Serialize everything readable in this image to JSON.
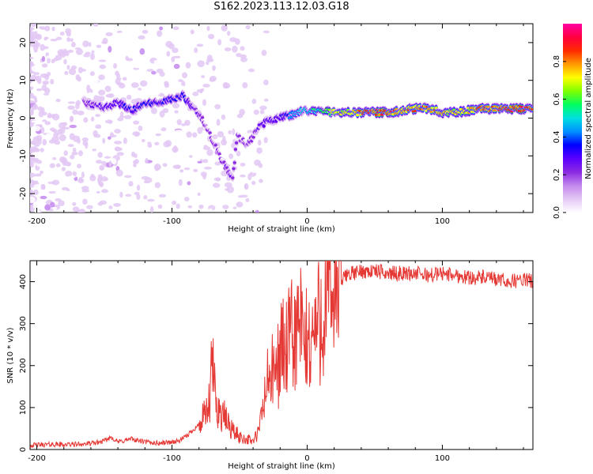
{
  "title": "S162.2023.113.12.03.G18",
  "chart_data": [
    {
      "type": "heatmap",
      "xlabel": "Height of straight line (km)",
      "ylabel": "Frequency (Hz)",
      "xlim": [
        -205,
        167
      ],
      "ylim": [
        -25,
        25
      ],
      "x_ticks": [
        -200,
        -100,
        0,
        100
      ],
      "y_ticks": [
        -20,
        -10,
        0,
        10,
        20
      ],
      "colorbar": {
        "label": "Normalized spectral amplitude",
        "range": [
          0,
          1
        ],
        "ticks": [
          "0.0",
          "0.2",
          "0.4",
          "0.6",
          "0.8"
        ],
        "colors": [
          "#ffffff",
          "#e3c8f5",
          "#c488ee",
          "#8a2be2",
          "#5a00ff",
          "#0000ff",
          "#0090ff",
          "#00e0e0",
          "#00ff60",
          "#80ff00",
          "#ffff00",
          "#ff9900",
          "#ff2a00",
          "#ff0040",
          "#ff00a0"
        ]
      },
      "ridge": {
        "x": [
          -165,
          -150,
          -140,
          -130,
          -120,
          -110,
          -100,
          -92,
          -85,
          -80,
          -75,
          -70,
          -65,
          -60,
          -55,
          -52,
          -48,
          -44,
          -40,
          -35,
          -30,
          -20,
          -10,
          -5,
          0,
          10,
          20,
          30,
          40,
          50,
          60,
          70,
          80,
          90,
          95,
          100,
          110,
          120,
          130,
          140,
          150,
          160,
          167
        ],
        "y": [
          4,
          3,
          4,
          2,
          4,
          4,
          5,
          6,
          3,
          1,
          -2,
          -6,
          -10,
          -13,
          -16,
          -5,
          -6,
          -7,
          -5,
          -2,
          -1,
          0,
          1,
          2,
          2,
          2,
          1.5,
          1.5,
          1.5,
          1.5,
          1.5,
          2,
          2.5,
          2.5,
          2,
          1.5,
          1.5,
          2,
          2.5,
          2.5,
          2.5,
          2.5,
          3
        ],
        "amplitude": [
          0.25,
          0.3,
          0.3,
          0.35,
          0.35,
          0.35,
          0.35,
          0.35,
          0.3,
          0.25,
          0.2,
          0.2,
          0.2,
          0.25,
          0.25,
          0.2,
          0.2,
          0.2,
          0.2,
          0.3,
          0.3,
          0.3,
          0.45,
          0.5,
          0.5,
          0.55,
          0.7,
          0.75,
          0.85,
          0.9,
          0.9,
          0.8,
          0.8,
          0.85,
          0.8,
          0.75,
          0.75,
          0.75,
          0.85,
          0.85,
          0.9,
          0.9,
          0.85
        ]
      }
    },
    {
      "type": "line",
      "xlabel": "Height of straight line (km)",
      "ylabel": "SNR (10 * v/v)",
      "xlim": [
        -205,
        167
      ],
      "ylim": [
        0,
        450
      ],
      "x_ticks": [
        -200,
        -100,
        0,
        100
      ],
      "y_ticks": [
        0,
        100,
        200,
        300,
        400
      ],
      "color": "#e53935",
      "series": [
        {
          "x": [
            -205,
            -190,
            -175,
            -160,
            -150,
            -145,
            -140,
            -130,
            -120,
            -110,
            -100,
            -95,
            -90,
            -85,
            -80,
            -75,
            -72,
            -70,
            -68,
            -65,
            -62,
            -60,
            -55,
            -50,
            -45,
            -40,
            -36,
            -33,
            -30,
            -27,
            -25,
            -22,
            -20,
            -18,
            -15,
            -12,
            -10,
            -8,
            -5,
            -3,
            0,
            3,
            5,
            8,
            10,
            12,
            15,
            18,
            20,
            22,
            25,
            30,
            35,
            40,
            50,
            60,
            70,
            80,
            90,
            100,
            110,
            120,
            130,
            140,
            150,
            160,
            167
          ],
          "y": [
            10,
            12,
            12,
            14,
            20,
            30,
            18,
            25,
            18,
            15,
            18,
            20,
            30,
            45,
            60,
            80,
            110,
            220,
            120,
            90,
            80,
            70,
            45,
            30,
            25,
            20,
            40,
            95,
            150,
            190,
            170,
            200,
            230,
            250,
            230,
            270,
            260,
            280,
            300,
            250,
            250,
            260,
            280,
            300,
            320,
            340,
            340,
            360,
            390,
            380,
            400,
            420,
            420,
            425,
            425,
            420,
            420,
            420,
            415,
            420,
            415,
            410,
            410,
            405,
            400,
            405,
            400
          ]
        }
      ]
    }
  ]
}
